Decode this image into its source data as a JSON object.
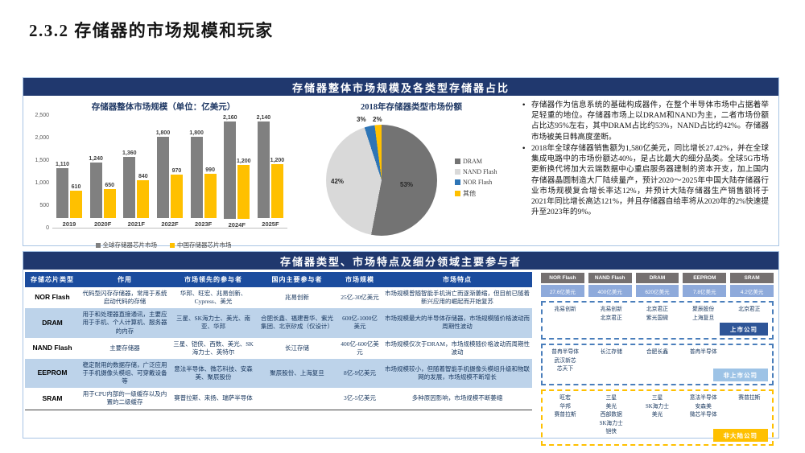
{
  "slide": {
    "title": "2.3.2 存储器的市场规模和玩家"
  },
  "section1": {
    "banner": "存储器整体市场规模及各类型存储器占比",
    "bullets": [
      "存储器作为信息系统的基础构成器件，在整个半导体市场中占据着举足轻重的地位。存储器市场上以DRAM和NAND为主，二者市场份额占比达95%左右，其中DRAM占比约53%，NAND占比约42%。存储器市场被美日韩高度垄断。",
      "2018年全球存储器销售额为1,580亿美元，同比增长27.42%，并在全球集成电路中的市场份额达40%，是占比最大的细分品类。全球5G市场更新换代将加大云端数据中心重启服务器建制的资本开支，加上国内存储器晶圆制造大厂陆续量产，预计2020～2025年中国大陆存储器行业市场规模复合增长率达12%，并预计大陆存储器生产销售额将于2021年同比增长高达121%，并且存储器自给率将从2020年的2%快速提升至2023年的9%。"
    ]
  },
  "chart_data": [
    {
      "type": "bar",
      "title": "存储器整体市场规模（单位：亿美元）",
      "categories": [
        "2019",
        "2020F",
        "2021F",
        "2022F",
        "2023F",
        "2024F",
        "2025F"
      ],
      "series": [
        {
          "name": "全球存储器芯片市场",
          "color": "#808080",
          "values": [
            1110,
            1240,
            1360,
            1800,
            1800,
            2160,
            2140
          ]
        },
        {
          "name": "中国存储器芯片市场",
          "color": "#FFC000",
          "values": [
            610,
            650,
            840,
            970,
            990,
            1200,
            1200
          ]
        }
      ],
      "xlabel": "",
      "ylabel": "",
      "ylim": [
        0,
        2500
      ],
      "ytick_step": 500,
      "grid": false,
      "legend_position": "bottom"
    },
    {
      "type": "pie",
      "title": "2018年存储器类型市场份额",
      "labels": [
        "DRAM",
        "NAND Flash",
        "NOR Flash",
        "其他"
      ],
      "values": [
        53,
        42,
        3,
        2
      ],
      "colors": [
        "#737373",
        "#D9D9D9",
        "#2E75B6",
        "#FFC000"
      ],
      "legend_position": "right"
    }
  ],
  "section2": {
    "banner": "存储器类型、市场特点及细分领域主要参与者",
    "table": {
      "headers": [
        "存储芯片类型",
        "作用",
        "市场领先的参与者",
        "国内主要参与者",
        "市场规模",
        "市场特点"
      ],
      "rows": [
        [
          "NOR Flash",
          "代码型闪存存储器，常用于系统启动代码的存储",
          "华邦、旺宏、兆易创新、Cypress、美光",
          "兆易创新",
          "25亿-30亿美元",
          "市场规模曾随智能手机消亡而逐渐萎缩，但目前已随着新兴应用的崛起而开始复苏"
        ],
        [
          "DRAM",
          "用于和处理器直接通讯，主要应用于手机、个人计算机、服务器的内存",
          "三星、SK海力士、美光、南亚、华邦",
          "合肥长鑫、福建晋华、紫光集团、北京矽成（仅设计）",
          "600亿-1000亿美元",
          "市场规模最大的半导体存储器，市场规模随价格波动而周期性波动"
        ],
        [
          "NAND Flash",
          "主要存储器",
          "三星、铠侠、西数、美光、SK海力士、英特尔",
          "长江存储",
          "400亿-600亿美元",
          "市场规模仅次于DRAM，市场规模随价格波动而周期性波动"
        ],
        [
          "EEPROM",
          "稳定耐用的数据存储，广泛应用于手机摄像头模组、可穿戴设备等",
          "意法半导体、微芯科技、安森美、聚辰股份",
          "聚辰股份、上海复旦",
          "8亿-9亿美元",
          "市场规模较小，但随着智能手机摄像头模组升级和物联网的发展，市场规模不断增长"
        ],
        [
          "SRAM",
          "用于CPU内部的一级缓存以及内置的二级缓存",
          "赛普拉斯、来扬、瑞萨半导体",
          "",
          "3亿-5亿美元",
          "多种原因影响，市场规模不断萎缩"
        ]
      ]
    },
    "diagram": {
      "group_labels": {
        "listed": "上市公司",
        "unlisted": "非上市公司",
        "foreign": "非大陆公司"
      },
      "columns": [
        {
          "type": "NOR Flash",
          "size": "27.6亿美元",
          "listed": [
            "兆易创新"
          ],
          "unlisted": [
            "普冉半导体",
            "武汉新芯",
            "芯天下"
          ],
          "foreign": [
            "旺宏",
            "华邦",
            "赛普拉斯"
          ]
        },
        {
          "type": "NAND Flash",
          "size": "400亿美元",
          "listed": [
            "兆易创新",
            "北京君正"
          ],
          "unlisted": [
            "长江存储"
          ],
          "foreign": [
            "三星",
            "美光",
            "西部数据",
            "SK海力士",
            "铠侠"
          ]
        },
        {
          "type": "DRAM",
          "size": "620亿美元",
          "listed": [
            "北京君正",
            "紫光国微"
          ],
          "unlisted": [
            "合肥长鑫"
          ],
          "foreign": [
            "三星",
            "SK海力士",
            "美光"
          ]
        },
        {
          "type": "EEPROM",
          "size": "7.8亿美元",
          "listed": [
            "聚辰股份",
            "上海复旦"
          ],
          "unlisted": [
            "普冉半导体"
          ],
          "foreign": [
            "意法半导体",
            "安森美",
            "微芯半导体"
          ]
        },
        {
          "type": "SRAM",
          "size": "4.2亿美元",
          "listed": [
            "北京君正"
          ],
          "unlisted": [],
          "foreign": [
            "赛普拉斯"
          ]
        }
      ]
    }
  }
}
